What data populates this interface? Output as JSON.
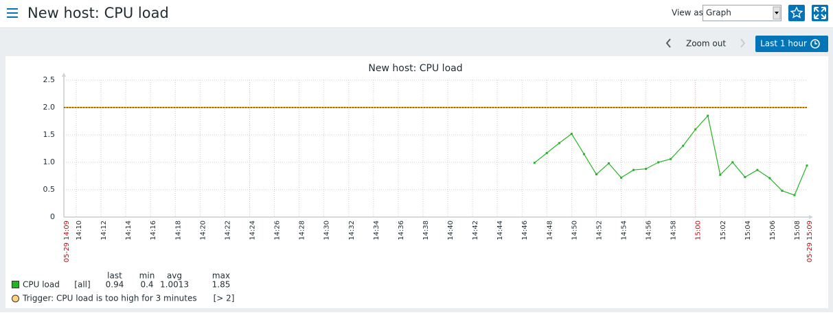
{
  "header": {
    "title": "New host: CPU load",
    "view_as_label": "View as",
    "view_as_value": "Graph"
  },
  "controls": {
    "zoom_out": "Zoom out",
    "time_range": "Last 1 hour"
  },
  "chart_data": {
    "type": "line",
    "title": "New host: CPU load",
    "x": [
      "14:47",
      "14:48",
      "14:49",
      "14:50",
      "14:51",
      "14:52",
      "14:53",
      "14:54",
      "14:55",
      "14:56",
      "14:57",
      "14:58",
      "14:59",
      "15:00",
      "15:01",
      "15:02",
      "15:03",
      "15:04",
      "15:05",
      "15:06",
      "15:07",
      "15:08",
      "15:09"
    ],
    "series": [
      {
        "name": "CPU load",
        "color": "#1fb71f",
        "values": [
          0.99,
          1.17,
          1.35,
          1.52,
          1.15,
          0.78,
          0.98,
          0.72,
          0.86,
          0.88,
          1.0,
          1.06,
          1.3,
          1.6,
          1.85,
          0.77,
          1.0,
          0.73,
          0.86,
          0.71,
          0.48,
          0.4,
          0.94
        ]
      }
    ],
    "xlim": [
      "05-29 14:09",
      "05-29 15:09"
    ],
    "xticks": [
      "14:10",
      "14:12",
      "14:14",
      "14:16",
      "14:18",
      "14:20",
      "14:22",
      "14:24",
      "14:26",
      "14:28",
      "14:30",
      "14:32",
      "14:34",
      "14:36",
      "14:38",
      "14:40",
      "14:42",
      "14:44",
      "14:46",
      "14:48",
      "14:50",
      "14:52",
      "14:54",
      "14:56",
      "14:58",
      "15:00",
      "15:02",
      "15:04",
      "15:06",
      "15:08"
    ],
    "ylim": [
      0,
      2.5
    ],
    "yticks": [
      0,
      0.5,
      {
        "value": 1,
        "label": "1.0"
      },
      1.5,
      {
        "value": 2,
        "label": "2.0"
      },
      2.5
    ],
    "grid": true,
    "major_tick_color": "#dc0000",
    "trigger": {
      "value": 2,
      "color": "#ffa500",
      "label": "Trigger: CPU load is too high for 3 minutes",
      "condition": "[> 2]"
    },
    "legend": {
      "function": "[all]",
      "headers": [
        "last",
        "min",
        "avg",
        "max"
      ],
      "stats": [
        0.94,
        0.4,
        1.0013,
        1.85
      ]
    }
  }
}
